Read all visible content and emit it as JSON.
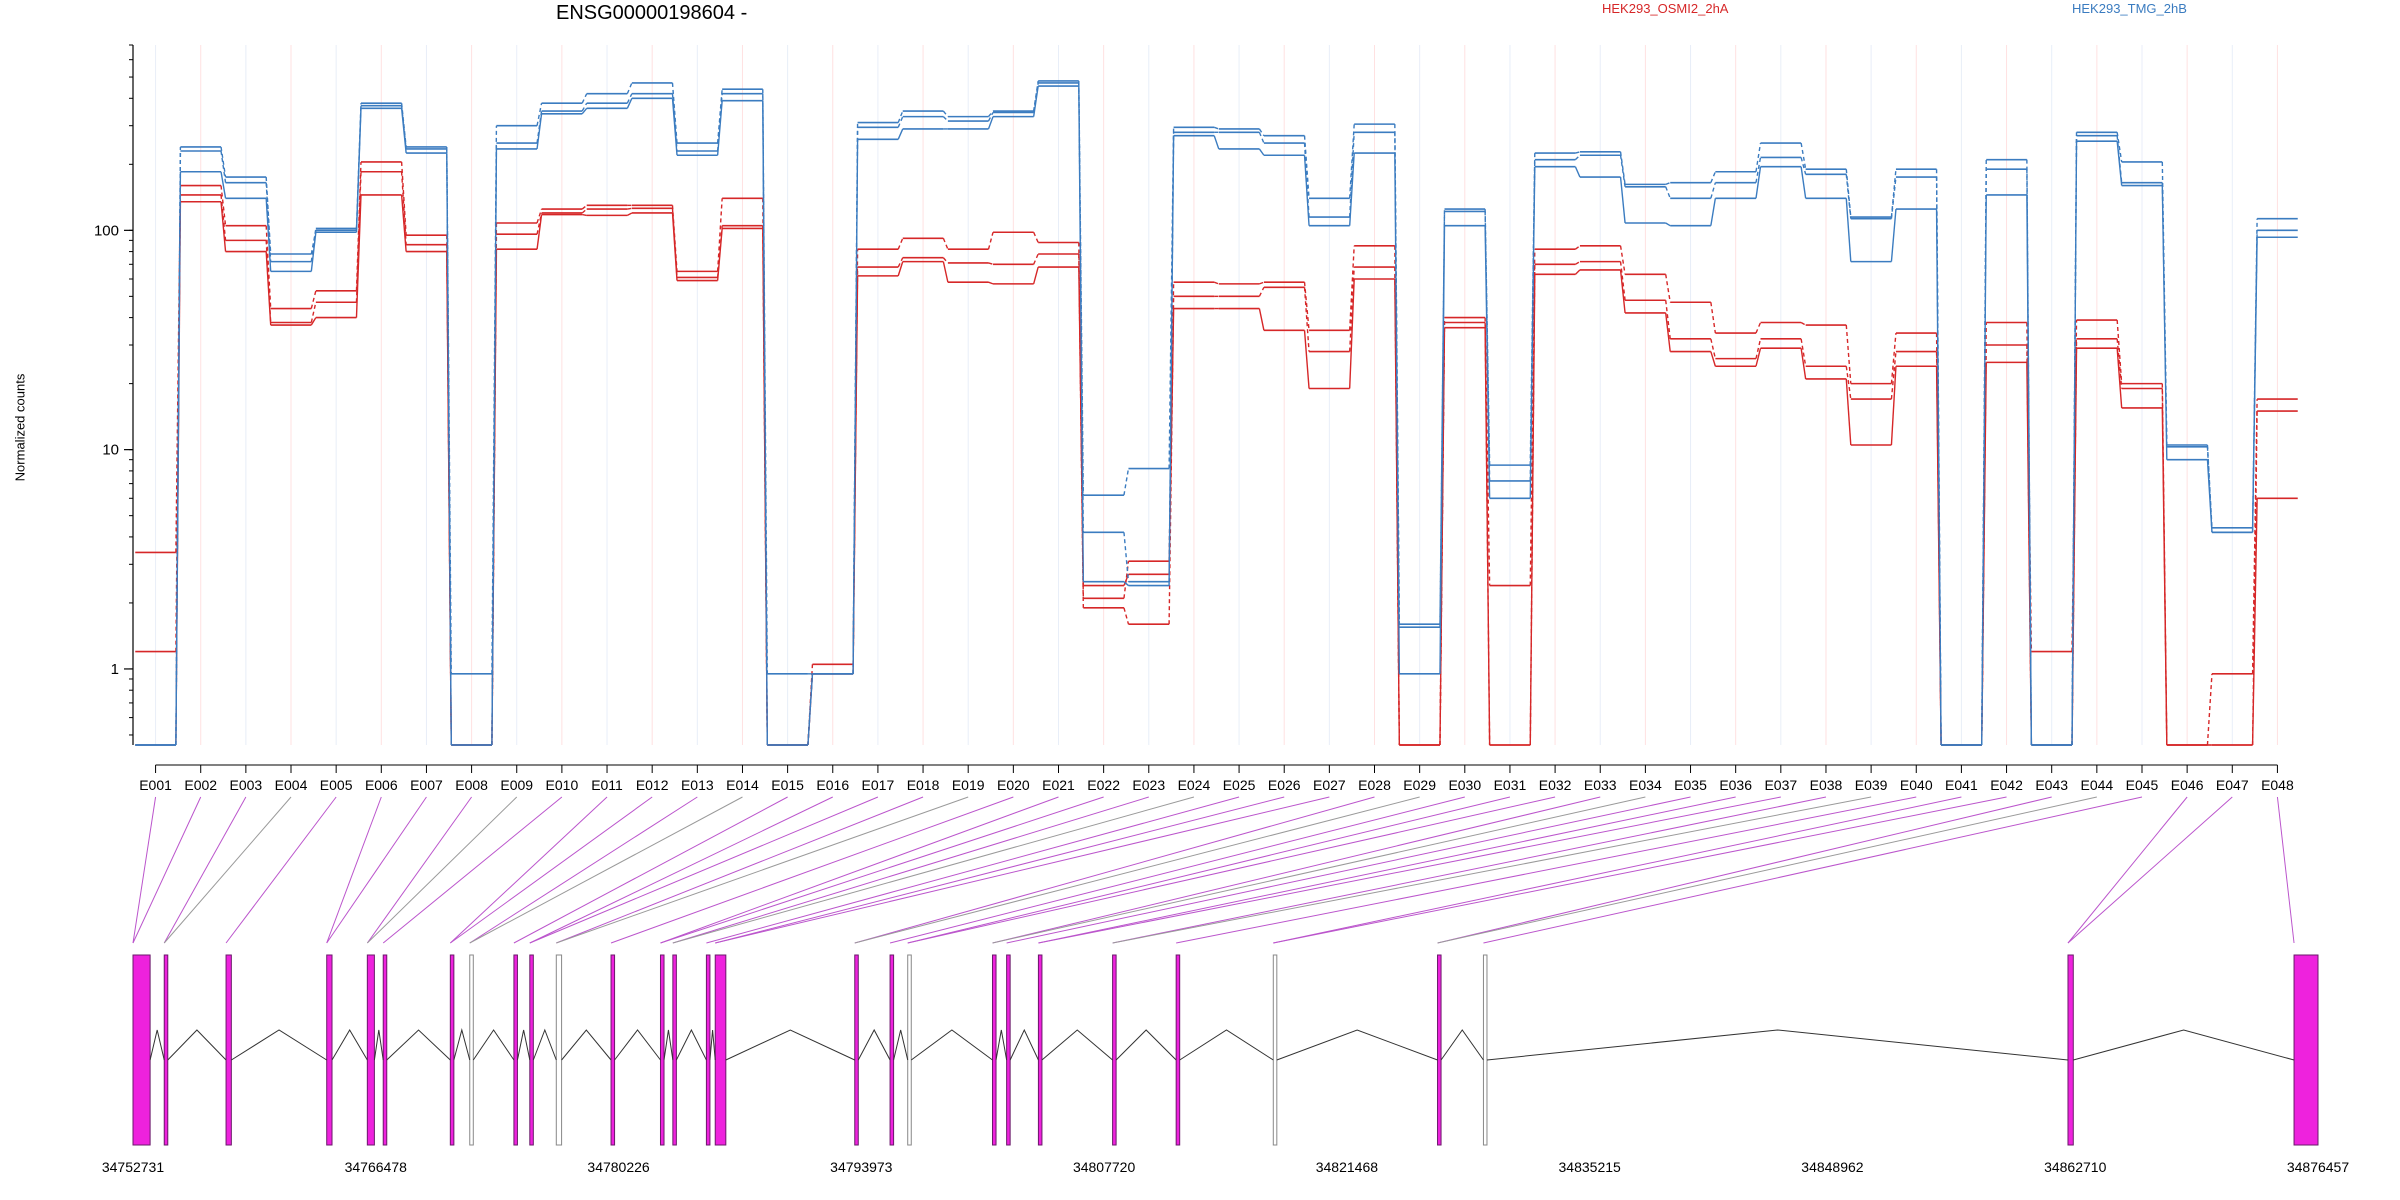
{
  "chart_data": {
    "type": "line",
    "title": "ENSG00000198604 -",
    "ylabel": "Normalized counts",
    "yscale": "log",
    "ylim": [
      0.45,
      700
    ],
    "yticks": [
      1,
      10,
      100
    ],
    "legend": [
      "HEK293_OSMI2_2hA",
      "HEK293_TMG_2hB"
    ],
    "legend_placement": "top",
    "colors": {
      "HEK293_OSMI2_2hA": "#d62728",
      "HEK293_TMG_2hB": "#3b7cc0",
      "transcript": "#ee22dd",
      "exon_line": "#bb55cc"
    },
    "categories": [
      "E001",
      "E002",
      "E003",
      "E004",
      "E005",
      "E006",
      "E007",
      "E008",
      "E009",
      "E010",
      "E011",
      "E012",
      "E013",
      "E014",
      "E015",
      "E016",
      "E017",
      "E018",
      "E019",
      "E020",
      "E021",
      "E022",
      "E023",
      "E024",
      "E025",
      "E026",
      "E027",
      "E028",
      "E029",
      "E030",
      "E031",
      "E032",
      "E033",
      "E034",
      "E035",
      "E036",
      "E037",
      "E038",
      "E039",
      "E040",
      "E041",
      "E042",
      "E043",
      "E044",
      "E045",
      "E046",
      "E047",
      "E048"
    ],
    "series": [
      {
        "name": "HEK293_OSMI2_2hA",
        "group": "OSMI2",
        "values": [
          3.4,
          160,
          105,
          44,
          53,
          205,
          95,
          0.45,
          108,
          125,
          130,
          130,
          65,
          140,
          0.45,
          1.05,
          82,
          92,
          82,
          98,
          88,
          2.1,
          3.1,
          58,
          57,
          58,
          35,
          85,
          0.45,
          40,
          2.4,
          82,
          85,
          63,
          47,
          34,
          38,
          37,
          20,
          34,
          0.45,
          38,
          1.2,
          39,
          20,
          0.45,
          0.95,
          17
        ]
      },
      {
        "name": "HEK293_OSMI2_2hA",
        "group": "OSMI2",
        "values": [
          1.2,
          145,
          90,
          38,
          47,
          185,
          86,
          0.45,
          96,
          120,
          125,
          126,
          61,
          105,
          0.45,
          0.95,
          68,
          75,
          71,
          70,
          78,
          1.9,
          1.6,
          50,
          50,
          55,
          28,
          68,
          0.45,
          38,
          0.45,
          70,
          72,
          48,
          32,
          26,
          32,
          24,
          17,
          28,
          0.45,
          30,
          0.45,
          32,
          19,
          0.45,
          0.45,
          15
        ]
      },
      {
        "name": "HEK293_OSMI2_2hA",
        "group": "OSMI2",
        "values": [
          0.45,
          135,
          80,
          37,
          40,
          145,
          80,
          0.45,
          82,
          118,
          117,
          120,
          59,
          102,
          0.45,
          0.95,
          62,
          72,
          58,
          57,
          68,
          2.4,
          2.7,
          44,
          44,
          35,
          19,
          60,
          0.45,
          36,
          0.45,
          63,
          66,
          42,
          28,
          24,
          29,
          21,
          10.5,
          24,
          0.45,
          25,
          0.45,
          29,
          15.5,
          0.45,
          0.45,
          6
        ]
      },
      {
        "name": "HEK293_TMG_2hB",
        "group": "TMG",
        "values": [
          0.45,
          240,
          175,
          78,
          100,
          380,
          240,
          0.95,
          300,
          380,
          420,
          470,
          250,
          440,
          0.95,
          0.95,
          310,
          350,
          330,
          350,
          480,
          6.2,
          8.2,
          295,
          290,
          270,
          140,
          305,
          1.55,
          125,
          8.5,
          225,
          228,
          162,
          165,
          185,
          250,
          190,
          115,
          190,
          0.45,
          210,
          0.45,
          280,
          205,
          10.5,
          4.4,
          113
        ]
      },
      {
        "name": "HEK293_TMG_2hB",
        "group": "TMG",
        "values": [
          0.45,
          230,
          165,
          72,
          102,
          370,
          235,
          0.45,
          250,
          350,
          380,
          420,
          230,
          420,
          0.45,
          0.95,
          295,
          330,
          315,
          345,
          470,
          4.2,
          2.5,
          280,
          280,
          250,
          115,
          280,
          1.6,
          122,
          7.2,
          210,
          220,
          158,
          140,
          165,
          215,
          180,
          113,
          175,
          0.45,
          190,
          0.45,
          270,
          165,
          10.3,
          4.2,
          100
        ]
      },
      {
        "name": "HEK293_TMG_2hB",
        "group": "TMG",
        "values": [
          0.45,
          185,
          140,
          65,
          98,
          360,
          225,
          0.45,
          235,
          340,
          360,
          400,
          220,
          390,
          0.45,
          0.95,
          260,
          290,
          290,
          330,
          455,
          2.5,
          2.4,
          270,
          235,
          220,
          105,
          225,
          0.95,
          105,
          6.0,
          195,
          175,
          108,
          105,
          140,
          195,
          140,
          72,
          125,
          0.45,
          145,
          0.45,
          255,
          160,
          9.0,
          4.2,
          93
        ]
      }
    ],
    "xticks": [
      "34752731",
      "34766478",
      "34780226",
      "34793973",
      "34807720",
      "34821468",
      "34835215",
      "34848962",
      "34862710",
      "34876457"
    ]
  }
}
